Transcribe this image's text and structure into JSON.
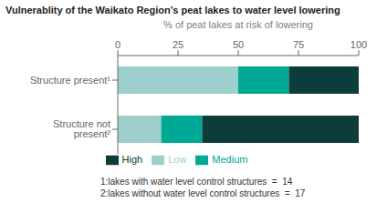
{
  "chart_data": {
    "type": "bar",
    "orientation": "horizontal",
    "stacked": true,
    "title": "Vulnerablity of the Waikato Region's peat lakes to water level lowering",
    "x_label": "% of peat lakes at risk of lowering",
    "categories": [
      "Structure present¹",
      "Structure not present²"
    ],
    "series": [
      {
        "name": "Low",
        "color": "#9ECFCC",
        "values": [
          50,
          18
        ]
      },
      {
        "name": "Medium",
        "color": "#00A896",
        "values": [
          21,
          17
        ]
      },
      {
        "name": "High",
        "color": "#0D3D3A",
        "values": [
          29,
          65
        ]
      }
    ],
    "xlim": [
      0,
      100
    ],
    "xticks": [
      0,
      25,
      50,
      75,
      100
    ],
    "grid": false,
    "legend": "bottom",
    "annotations": [
      "1:lakes with water level control structures  =  14",
      "2:lakes without water level control structures  =  17"
    ]
  }
}
